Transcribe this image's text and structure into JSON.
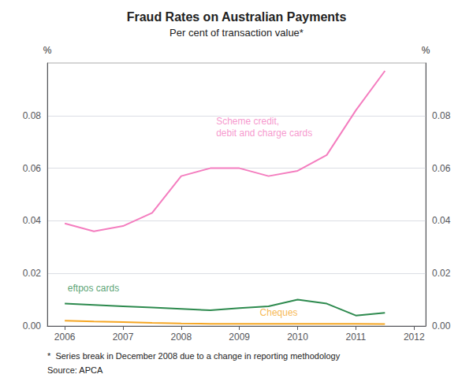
{
  "chart_data": {
    "type": "line",
    "title": "Fraud Rates on Australian Payments",
    "subtitle": "Per cent of transaction value*",
    "footnote": "*  Series break in December 2008 due to a change in reporting methodology",
    "source": "Source: APCA",
    "y_label": "%",
    "y2_label": "%",
    "x": [
      2006.0,
      2006.5,
      2007.0,
      2007.5,
      2008.0,
      2008.5,
      2009.0,
      2009.5,
      2010.0,
      2010.5,
      2011.0,
      2011.5
    ],
    "series": [
      {
        "name": "Scheme credit,\ndebit and charge cards",
        "color": "#f47dbf",
        "values": [
          0.039,
          0.036,
          0.038,
          0.043,
          0.057,
          0.06,
          0.06,
          0.057,
          0.059,
          0.065,
          0.082,
          0.097
        ]
      },
      {
        "name": "eftpos cards",
        "color": "#2d8a4e",
        "values": [
          0.0085,
          0.008,
          0.0075,
          0.007,
          0.0065,
          0.006,
          0.0068,
          0.0075,
          0.01,
          0.0085,
          0.004,
          0.005
        ]
      },
      {
        "name": "Cheques",
        "color": "#f5a623",
        "values": [
          0.002,
          0.0017,
          0.0015,
          0.0012,
          0.001,
          0.00085,
          0.00085,
          0.00085,
          0.00085,
          0.00085,
          0.00085,
          0.00075
        ]
      }
    ],
    "annotations": [
      {
        "text": "Scheme credit,\ndebit and charge cards",
        "x": 2008.6,
        "y": 0.071,
        "color": "#f47dbf"
      },
      {
        "text": "eftpos cards",
        "x": 2006.05,
        "y": 0.012,
        "color": "#2d8a4e"
      },
      {
        "text": "Cheques",
        "x": 2009.35,
        "y": 0.0028,
        "color": "#f5a623"
      }
    ],
    "xlim": [
      2005.7,
      2012.2
    ],
    "xticks": [
      2006,
      2007,
      2008,
      2009,
      2010,
      2011,
      2012
    ],
    "ylim": [
      0.0,
      0.1
    ],
    "yticks": [
      {
        "value": 0.0,
        "label": "0.00"
      },
      {
        "value": 0.02,
        "label": "0.02"
      },
      {
        "value": 0.04,
        "label": "0.04"
      },
      {
        "value": 0.06,
        "label": "0.06"
      },
      {
        "value": 0.08,
        "label": "0.08"
      }
    ],
    "y2lim": [
      0.0,
      0.1
    ],
    "y2ticks": [
      {
        "value": 0.0,
        "label": "0.00"
      },
      {
        "value": 0.02,
        "label": "0.02"
      },
      {
        "value": 0.04,
        "label": "0.04"
      },
      {
        "value": 0.06,
        "label": "0.06"
      },
      {
        "value": 0.08,
        "label": "0.08"
      }
    ],
    "grid": true
  }
}
